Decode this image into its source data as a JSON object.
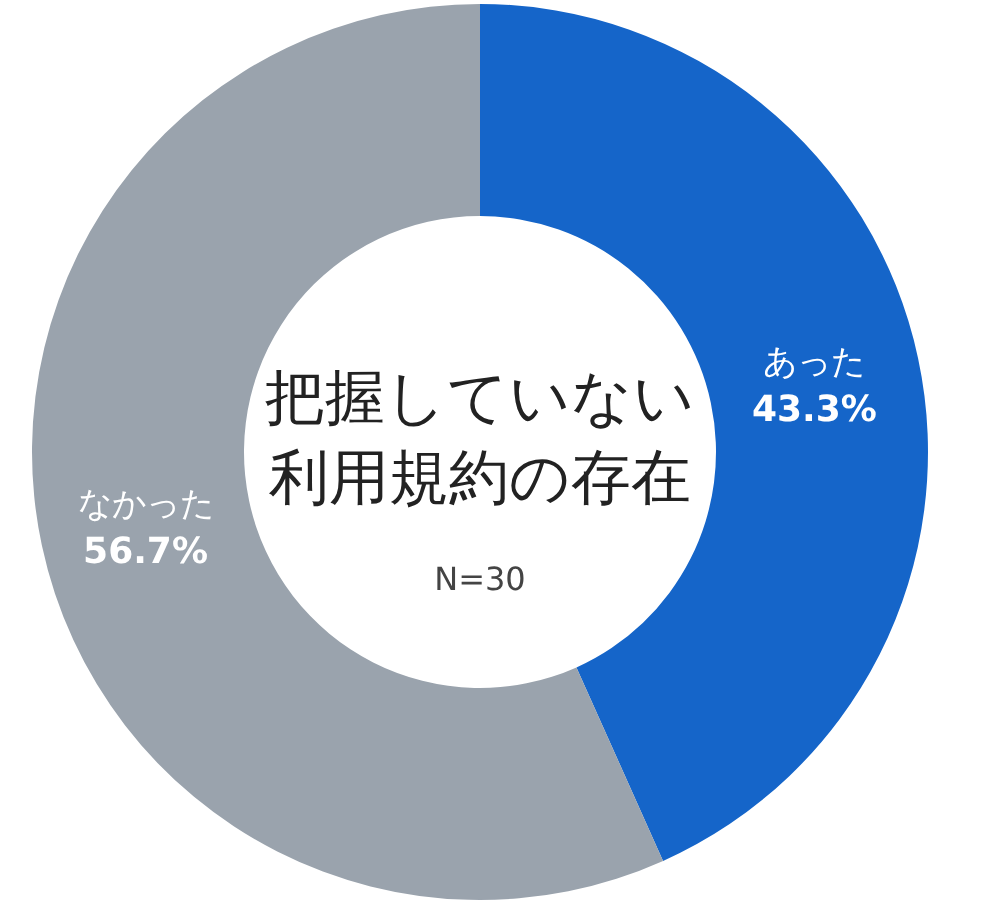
{
  "chart_data": {
    "type": "donut",
    "title": "把握していない利用規約の存在",
    "subtitle": "N=30",
    "categories": [
      "あった",
      "なかった"
    ],
    "values": [
      43.3,
      56.7
    ],
    "colors": [
      "#1565c9",
      "#9aa3ad"
    ],
    "value_labels": [
      "43.3%",
      "56.7%"
    ]
  }
}
